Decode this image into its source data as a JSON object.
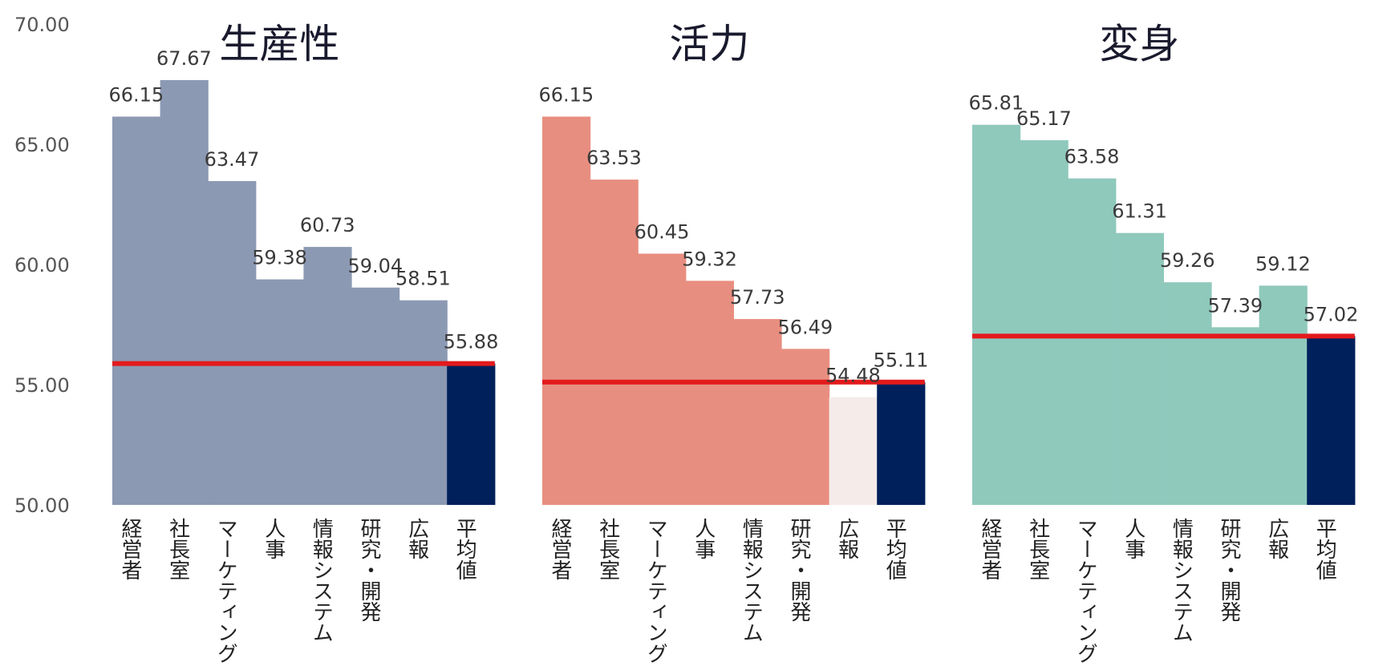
{
  "chart_data": {
    "type": "bar",
    "ylim": [
      50,
      70
    ],
    "yticks": [
      "50.00",
      "55.00",
      "60.00",
      "65.00",
      "70.00"
    ],
    "grid": false,
    "legend": "none",
    "average_line_color": "#e31a1c",
    "average_bar_color": "#00205b",
    "panels": [
      {
        "title": "生産性",
        "bar_color": "#8c99b3",
        "categories": [
          "経営者",
          "社長室",
          "マーケティング",
          "人事",
          "情報システム",
          "研究・開発",
          "広報",
          "平均値"
        ],
        "values": [
          66.15,
          67.67,
          63.47,
          59.38,
          60.73,
          59.04,
          58.51,
          55.88
        ],
        "labels": [
          "66.15",
          "67.67",
          "63.47",
          "59.38",
          "60.73",
          "59.04",
          "58.51",
          "55.88"
        ],
        "average": 55.88
      },
      {
        "title": "活力",
        "bar_color": "#e88e80",
        "below_average_color": "#f5ebe9",
        "categories": [
          "経営者",
          "社長室",
          "マーケティング",
          "人事",
          "情報システム",
          "研究・開発",
          "広報",
          "平均値"
        ],
        "values": [
          66.15,
          63.53,
          60.45,
          59.32,
          57.73,
          56.49,
          54.48,
          55.11
        ],
        "labels": [
          "66.15",
          "63.53",
          "60.45",
          "59.32",
          "57.73",
          "56.49",
          "54.48",
          "55.11"
        ],
        "average": 55.11
      },
      {
        "title": "変身",
        "bar_color": "#8fc9bc",
        "categories": [
          "経営者",
          "社長室",
          "マーケティング",
          "人事",
          "情報システム",
          "研究・開発",
          "広報",
          "平均値"
        ],
        "values": [
          65.81,
          65.17,
          63.58,
          61.31,
          59.26,
          57.39,
          59.12,
          57.02
        ],
        "labels": [
          "65.81",
          "65.17",
          "63.58",
          "61.31",
          "59.26",
          "57.39",
          "59.12",
          "57.02"
        ],
        "average": 57.02
      }
    ]
  }
}
